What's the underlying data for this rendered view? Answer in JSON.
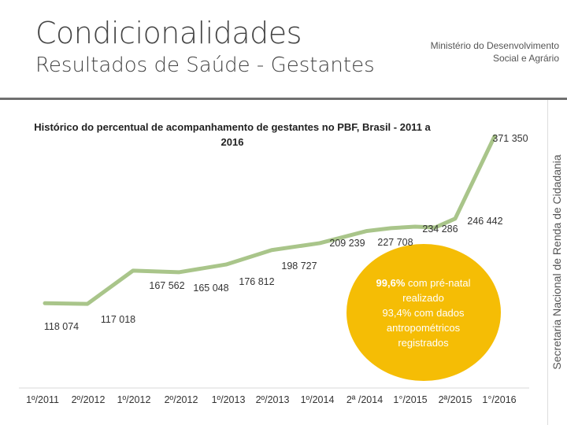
{
  "header": {
    "title": "Condicionalidades",
    "subtitle": "Resultados de Saúde - Gestantes",
    "ministry_line1": "Ministério do Desenvolvimento",
    "ministry_line2": "Social e Agrário",
    "side_label": "Secretaria Nacional de Renda de Cidadania"
  },
  "callout": {
    "pct1": "99,6%",
    "text1": " com pré-natal realizado",
    "text2": "93,4% com dados antropométricos registrados",
    "color": "#f5bd05"
  },
  "chart_data": {
    "type": "line",
    "title": "Histórico do percentual de acompanhamento de gestantes no PBF, Brasil - 2011 a 2016",
    "line_color": "#a9c58a",
    "categories": [
      "1º/2011",
      "2º/2012",
      "1º/2012",
      "2º/2012",
      "1º/2013",
      "2º/2013",
      "1º/2014",
      "2ª /2014",
      "1°/2015",
      "2ª/2015",
      "1°/2016"
    ],
    "values": [
      118074,
      117018,
      167562,
      165048,
      176812,
      198727,
      209239,
      227708,
      234286,
      246442,
      371350
    ],
    "data_labels": [
      "118 074",
      "117 018",
      "167 562",
      "165 048",
      "176 812",
      "198 727",
      "209 239",
      "227 708",
      "234 286",
      "246 442",
      "371 350"
    ],
    "extra_points": [
      {
        "after_index": 7,
        "value": 232000
      },
      {
        "after_index": 8,
        "value": 233000
      }
    ]
  }
}
